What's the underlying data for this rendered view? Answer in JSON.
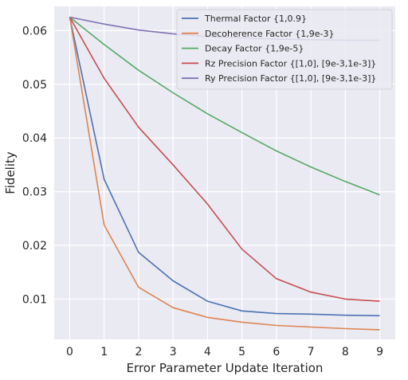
{
  "chart_data": {
    "type": "line",
    "title": "",
    "xlabel": "Error Parameter Update Iteration",
    "ylabel": "Fidelity",
    "x": [
      0,
      1,
      2,
      3,
      4,
      5,
      6,
      7,
      8,
      9
    ],
    "xlim": [
      -0.45,
      9.45
    ],
    "ylim": [
      0.0025,
      0.0645
    ],
    "x_ticks": [
      "0",
      "1",
      "2",
      "3",
      "4",
      "5",
      "6",
      "7",
      "8",
      "9"
    ],
    "y_ticks": [
      0.01,
      0.02,
      0.03,
      0.04,
      0.05,
      0.06
    ],
    "y_tick_labels": [
      "0.01",
      "0.02",
      "0.03",
      "0.04",
      "0.05",
      "0.06"
    ],
    "grid": true,
    "legend_position": "top-right",
    "series": [
      {
        "name": "Thermal Factor {1,0.9}",
        "color": "#4c72b0",
        "values": [
          0.0625,
          0.0323,
          0.0187,
          0.0134,
          0.0096,
          0.0078,
          0.0073,
          0.0072,
          0.007,
          0.0069
        ]
      },
      {
        "name": "Decoherence Factor {1,9e-3}",
        "color": "#dd8452",
        "values": [
          0.0625,
          0.0238,
          0.0122,
          0.0084,
          0.0066,
          0.0057,
          0.0051,
          0.0048,
          0.0045,
          0.0043
        ]
      },
      {
        "name": "Decay Factor {1,9e-5}",
        "color": "#55a868",
        "values": [
          0.0625,
          0.0574,
          0.0526,
          0.0484,
          0.0445,
          0.041,
          0.0376,
          0.0346,
          0.0319,
          0.0294
        ]
      },
      {
        "name": "Rz Precision Factor {[1,0], [9e-3,1e-3]}",
        "color": "#c44e52",
        "values": [
          0.0625,
          0.0511,
          0.042,
          0.035,
          0.0277,
          0.0193,
          0.0138,
          0.0113,
          0.01,
          0.0096
        ]
      },
      {
        "name": "Ry Precision Factor {[1,0], [9e-3,1e-3]}",
        "color": "#8172b3",
        "values": [
          0.0625,
          0.0612,
          0.0601,
          0.0594,
          0.0589,
          0.0586,
          0.0584,
          0.0583,
          0.0582,
          0.0582
        ]
      }
    ]
  }
}
